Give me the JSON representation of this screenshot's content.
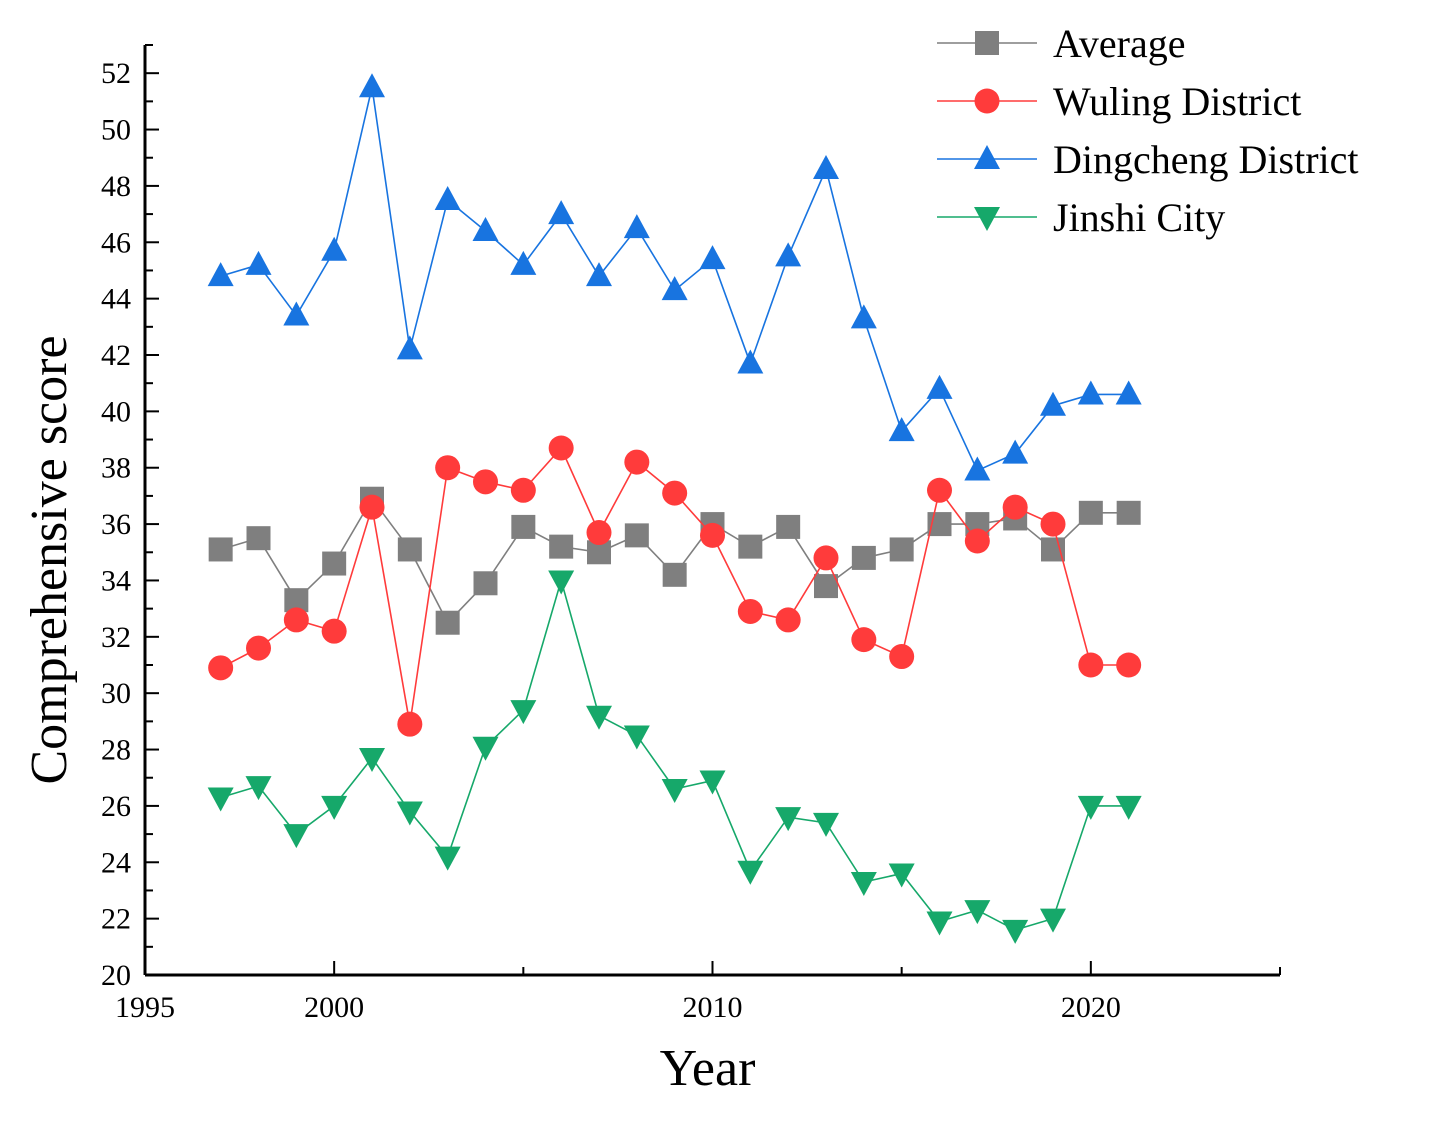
{
  "chart_data": {
    "type": "line",
    "title": "",
    "xlabel": "Year",
    "ylabel": "Comprehensive score",
    "xlim": [
      1995,
      2025
    ],
    "ylim": [
      20,
      53
    ],
    "x_ticks": [
      1995,
      2000,
      2010,
      2020
    ],
    "y_ticks": [
      20,
      22,
      24,
      26,
      28,
      30,
      32,
      34,
      36,
      38,
      40,
      42,
      44,
      46,
      48,
      50,
      52
    ],
    "grid": false,
    "legend_position": "top-right",
    "x": [
      1997,
      1998,
      1999,
      2000,
      2001,
      2002,
      2003,
      2004,
      2005,
      2006,
      2007,
      2008,
      2009,
      2010,
      2011,
      2012,
      2013,
      2014,
      2015,
      2016,
      2017,
      2018,
      2019,
      2020,
      2021
    ],
    "series": [
      {
        "name": "Average",
        "color": "#7f7f7f",
        "marker": "square",
        "values": [
          35.1,
          35.5,
          33.3,
          34.6,
          36.9,
          35.1,
          32.5,
          33.9,
          35.9,
          35.2,
          35.0,
          35.6,
          34.2,
          36.0,
          35.2,
          35.9,
          33.8,
          34.8,
          35.1,
          36.0,
          36.0,
          36.2,
          35.1,
          36.4,
          36.4
        ]
      },
      {
        "name": "Wuling District",
        "color": "#ff3b3b",
        "marker": "circle",
        "values": [
          30.9,
          31.6,
          32.6,
          32.2,
          36.6,
          28.9,
          38.0,
          37.5,
          37.2,
          38.7,
          35.7,
          38.2,
          37.1,
          35.6,
          32.9,
          32.6,
          34.8,
          31.9,
          31.3,
          37.2,
          35.4,
          36.6,
          36.0,
          31.0,
          31.0
        ]
      },
      {
        "name": "Dingcheng District",
        "color": "#1874e0",
        "marker": "triangle-up",
        "values": [
          44.8,
          45.2,
          43.4,
          45.7,
          51.5,
          42.2,
          47.5,
          46.4,
          45.2,
          47.0,
          44.8,
          46.5,
          44.3,
          45.4,
          41.7,
          45.5,
          48.6,
          43.3,
          39.3,
          40.8,
          37.9,
          38.5,
          40.2,
          40.6,
          40.6
        ]
      },
      {
        "name": "Jinshi City",
        "color": "#16a86a",
        "marker": "triangle-down",
        "values": [
          26.3,
          26.7,
          25.0,
          26.0,
          27.7,
          25.8,
          24.2,
          28.1,
          29.4,
          34.0,
          29.2,
          28.5,
          26.6,
          26.9,
          23.7,
          25.6,
          25.4,
          23.3,
          23.6,
          21.9,
          22.3,
          21.6,
          22.0,
          26.0,
          26.0
        ]
      }
    ]
  }
}
